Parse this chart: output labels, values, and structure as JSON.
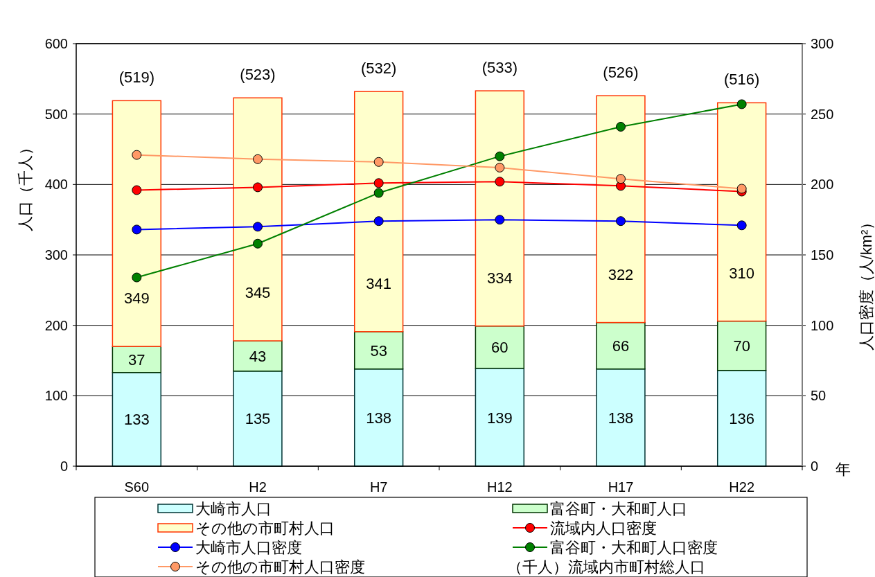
{
  "chart_data": {
    "type": "bar",
    "stacked": true,
    "categories": [
      "S60",
      "H2",
      "H7",
      "H12",
      "H17",
      "H22"
    ],
    "ylabel": "人口（千人）",
    "y2label": "人口密度（人/km²）",
    "xlabel": "年",
    "ylim": [
      0,
      600
    ],
    "yticks": [
      0,
      100,
      200,
      300,
      400,
      500,
      600
    ],
    "y2lim": [
      0,
      300
    ],
    "y2ticks": [
      0,
      50,
      100,
      150,
      200,
      250,
      300
    ],
    "grid": "y",
    "legend": "bottom",
    "marker": "circle",
    "line_style": "solid",
    "totals": [
      "(519)",
      "(523)",
      "(532)",
      "(533)",
      "(526)",
      "(516)"
    ],
    "annotations": [
      "（千人）流域内市町村総人口"
    ],
    "series": [
      {
        "name": "大崎市人口",
        "color": "#ccffff",
        "values": [
          133,
          135,
          138,
          139,
          138,
          136
        ],
        "value_labels": [
          "133",
          "135",
          "138",
          "139",
          "138",
          "136"
        ]
      },
      {
        "name": "富谷町・大和町人口",
        "color": "#ccffcc",
        "values": [
          37,
          43,
          53,
          60,
          66,
          70
        ],
        "value_labels": [
          "37",
          "43",
          "53",
          "60",
          "66",
          "70"
        ]
      },
      {
        "name": "その他の市町村人口",
        "color": "#ffffcc",
        "values": [
          349,
          345,
          341,
          334,
          322,
          310
        ],
        "value_labels": [
          "349",
          "345",
          "341",
          "334",
          "322",
          "310"
        ]
      },
      {
        "name": "流域内人口密度",
        "type": "line",
        "axis": "y2",
        "color": "#ff0000",
        "values": [
          196,
          198,
          201,
          202,
          199,
          195
        ]
      },
      {
        "name": "大崎市人口密度",
        "type": "line",
        "axis": "y2",
        "color": "#0000ff",
        "values": [
          168,
          170,
          174,
          175,
          174,
          171
        ]
      },
      {
        "name": "富谷町・大和町人口密度",
        "type": "line",
        "axis": "y2",
        "color": "#008000",
        "values": [
          134,
          158,
          194,
          220,
          241,
          257
        ]
      },
      {
        "name": "その他の市町村人口密度",
        "type": "line",
        "axis": "y2",
        "color": "#ff9966",
        "values": [
          221,
          218,
          216,
          212,
          204,
          197
        ]
      }
    ]
  }
}
